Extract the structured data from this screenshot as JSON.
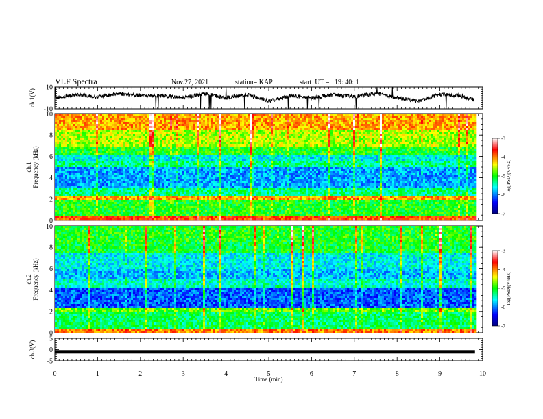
{
  "header": {
    "title": "VLF Spectra",
    "date": "Nov.27, 2021",
    "station": "station= KAP",
    "start": "start  UT =   19: 40: 1"
  },
  "chart_data": [
    {
      "type": "line",
      "name": "ch1-waveform",
      "ylabel": "ch.1(V)",
      "ylim": [
        -10,
        10
      ],
      "yticks": [
        "10",
        "-10"
      ],
      "x_range_min": [
        0,
        9.8
      ],
      "approx_profile": {
        "x": [
          0,
          0.5,
          1.0,
          1.5,
          2.0,
          2.5,
          3.0,
          3.5,
          4.0,
          4.5,
          5.0,
          5.5,
          6.0,
          6.5,
          7.0,
          7.5,
          8.0,
          8.5,
          9.0,
          9.5,
          9.8
        ],
        "y": [
          0,
          3,
          1,
          4,
          2,
          2,
          0,
          4,
          0,
          3,
          -3,
          2,
          0,
          3,
          1,
          4,
          0,
          -3,
          3,
          2,
          -2
        ]
      }
    },
    {
      "type": "heatmap",
      "name": "ch1-spectrogram",
      "ylabel": "ch.1\nFrequency (kHz)",
      "ylim": [
        0,
        10
      ],
      "yticks": [
        "0",
        "2",
        "4",
        "6",
        "8",
        "10"
      ],
      "colorbar": {
        "label": "log(PSD)(V²/Hz)",
        "ticks": [
          "-3",
          "-4",
          "-5",
          "-6",
          "-7"
        ],
        "range": [
          -7,
          -3
        ]
      }
    },
    {
      "type": "heatmap",
      "name": "ch2-spectrogram",
      "ylabel": "ch.2\nFrequency (kHz)",
      "ylim": [
        0,
        10
      ],
      "yticks": [
        "0",
        "2",
        "4",
        "6",
        "8",
        "10"
      ],
      "colorbar": {
        "label": "log(PSD)(V²/Hz)",
        "ticks": [
          "-3",
          "-4",
          "-5",
          "-6",
          "-7"
        ],
        "range": [
          -7,
          -3
        ]
      }
    },
    {
      "type": "line",
      "name": "ch3-waveform",
      "ylabel": "ch.3(V)",
      "ylim": [
        -5,
        5
      ],
      "yticks": [
        "5",
        "0",
        "-5"
      ],
      "approx_level": -1
    }
  ],
  "xaxis": {
    "label": "Time (min)",
    "ticks": [
      "0",
      "1",
      "2",
      "3",
      "4",
      "5",
      "6",
      "7",
      "8",
      "9",
      "10"
    ],
    "range": [
      0,
      10
    ]
  }
}
